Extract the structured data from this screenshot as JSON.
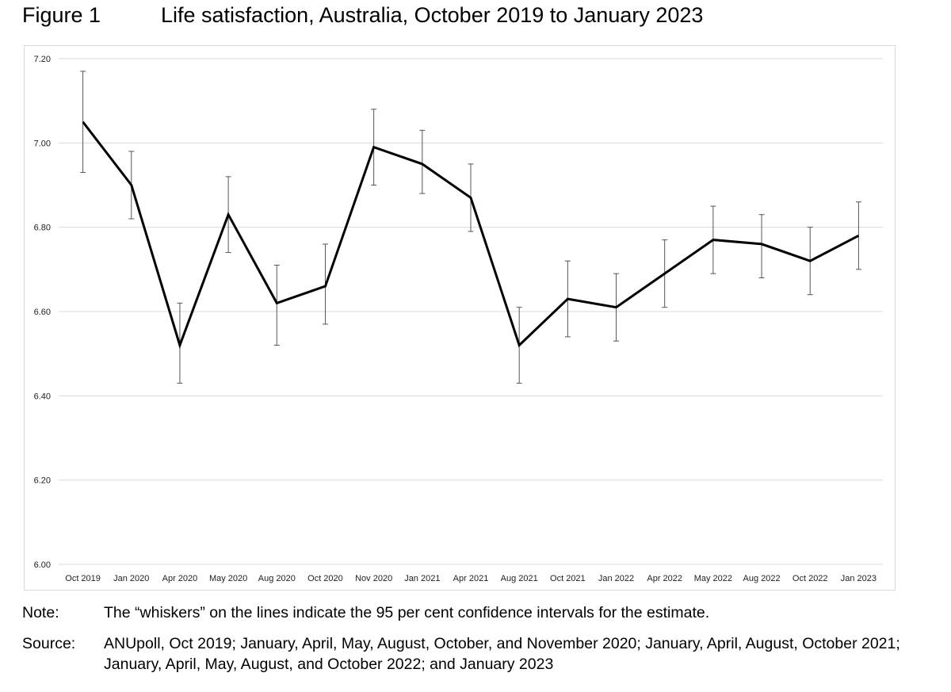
{
  "figure": {
    "label": "Figure 1",
    "title": "Life satisfaction, Australia, October 2019 to January 2023"
  },
  "notes": {
    "note_label": "Note:",
    "note_text": "The “whiskers” on the lines indicate the 95 per cent confidence intervals for the estimate.",
    "source_label": "Source:",
    "source_text": "ANUpoll, Oct 2019; January, April, May, August, October, and November 2020; January, April, August, October 2021; January, April, May, August, and October 2022; and January 2023"
  },
  "chart_data": {
    "type": "line",
    "title": "",
    "xlabel": "",
    "ylabel": "",
    "ylim": [
      6.0,
      7.2
    ],
    "yticks": [
      "6.00",
      "6.20",
      "6.40",
      "6.60",
      "6.80",
      "7.00",
      "7.20"
    ],
    "grid": true,
    "legend": "none",
    "line_color": "#000000",
    "grid_color": "#d9d9d9",
    "categories": [
      "Oct 2019",
      "Jan 2020",
      "Apr 2020",
      "May 2020",
      "Aug 2020",
      "Oct 2020",
      "Nov 2020",
      "Jan 2021",
      "Apr 2021",
      "Aug 2021",
      "Oct 2021",
      "Jan 2022",
      "Apr 2022",
      "May 2022",
      "Aug 2022",
      "Oct 2022",
      "Jan 2023"
    ],
    "series": [
      {
        "values": [
          7.05,
          6.9,
          6.52,
          6.83,
          6.62,
          6.66,
          6.99,
          6.95,
          6.87,
          6.52,
          6.63,
          6.61,
          6.69,
          6.77,
          6.76,
          6.72,
          6.78
        ],
        "ci_low": [
          6.93,
          6.82,
          6.43,
          6.74,
          6.52,
          6.57,
          6.9,
          6.88,
          6.79,
          6.43,
          6.54,
          6.53,
          6.61,
          6.69,
          6.68,
          6.64,
          6.7
        ],
        "ci_high": [
          7.17,
          6.98,
          6.62,
          6.92,
          6.71,
          6.76,
          7.08,
          7.03,
          6.95,
          6.61,
          6.72,
          6.69,
          6.77,
          6.85,
          6.83,
          6.8,
          6.86
        ]
      }
    ]
  }
}
